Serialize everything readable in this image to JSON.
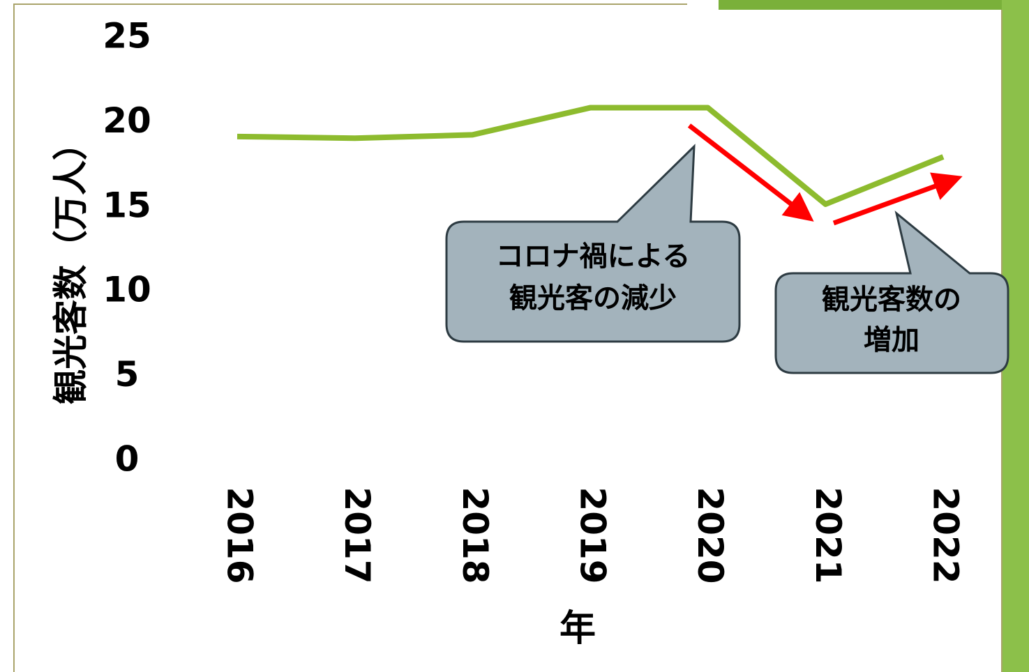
{
  "chart_data": {
    "type": "line",
    "y_label": "観光客数（万人）",
    "x_label": "年",
    "categories": [
      "2016",
      "2017",
      "2018",
      "2019",
      "2020",
      "2021",
      "2022"
    ],
    "series": [
      {
        "name": "観光客数",
        "color": "#8dbb2e",
        "values": [
          19.2,
          19.1,
          19.3,
          20.9,
          20.9,
          15.2,
          18.0
        ]
      }
    ],
    "ylim": [
      0,
      25
    ],
    "yticks": [
      0,
      5,
      10,
      15,
      20,
      25
    ],
    "grid": false,
    "legend": false,
    "annotations": [
      {
        "text": [
          "コロナ禍による",
          "観光客の減少"
        ]
      },
      {
        "text": [
          "観光客数の",
          "増加"
        ]
      }
    ]
  }
}
